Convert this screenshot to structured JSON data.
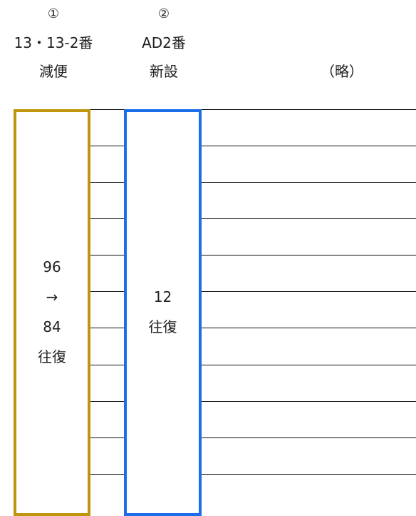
{
  "columns": [
    {
      "marker": "①",
      "route": "13・13-2番",
      "action": "減便",
      "frequency_from": "96",
      "arrow": "→",
      "frequency_to": "84",
      "unit": "往復",
      "color": "#c0950e"
    },
    {
      "marker": "②",
      "route": "AD2番",
      "action": "新設",
      "frequency": "12",
      "unit": "往復",
      "color": "#1a6ee8"
    },
    {
      "label": "（略）"
    }
  ]
}
